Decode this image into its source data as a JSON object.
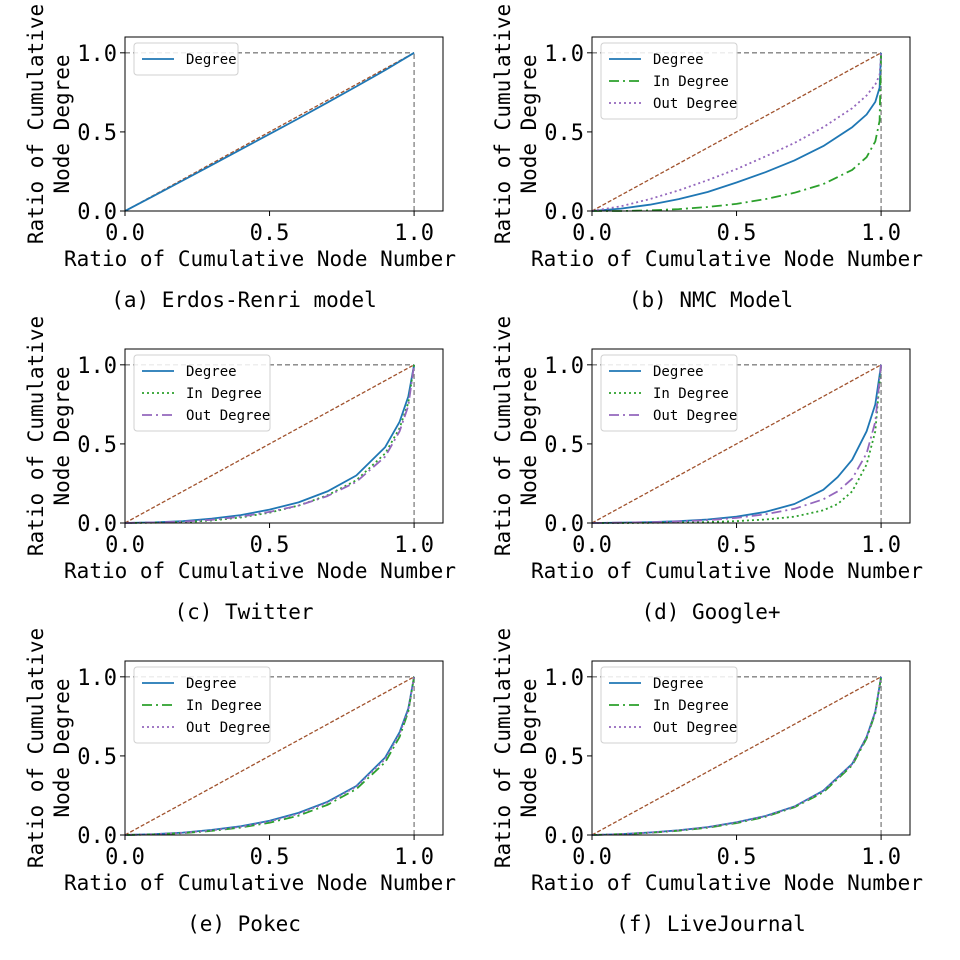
{
  "colors": {
    "degree": "#1f77b4",
    "in_degree": "#2ca02c",
    "out_degree": "#9467bd",
    "reference": "#a0522d",
    "frame": "#808080"
  },
  "chart_data": [
    {
      "type": "line",
      "caption": "(a) Erdos-Renri model",
      "xlabel": "Ratio of Cumulative Node Number",
      "ylabel": [
        "Ratio of Cumulative",
        "Node Degree"
      ],
      "xlim": [
        0,
        1.1
      ],
      "ylim": [
        0,
        1.1
      ],
      "xticks": [
        "0.0",
        "0.5",
        "1.0"
      ],
      "yticks": [
        "0.0",
        "0.5",
        "1.0"
      ],
      "legend": "upper-left",
      "series": [
        {
          "name": "Degree",
          "color": "#1f77b4",
          "dash": "solid",
          "x": [
            0,
            0.1,
            0.2,
            0.3,
            0.4,
            0.5,
            0.6,
            0.7,
            0.8,
            0.9,
            1.0
          ],
          "y": [
            0,
            0.096,
            0.193,
            0.29,
            0.388,
            0.486,
            0.585,
            0.685,
            0.787,
            0.891,
            1.0
          ]
        }
      ]
    },
    {
      "type": "line",
      "caption": "(b) NMC Model",
      "xlabel": "Ratio of Cumulative Node Number",
      "ylabel": [
        "Ratio of Cumulative",
        "Node Degree"
      ],
      "xlim": [
        0,
        1.1
      ],
      "ylim": [
        0,
        1.1
      ],
      "xticks": [
        "0.0",
        "0.5",
        "1.0"
      ],
      "yticks": [
        "0.0",
        "0.5",
        "1.0"
      ],
      "legend": "upper-left",
      "series": [
        {
          "name": "Degree",
          "color": "#1f77b4",
          "dash": "solid",
          "x": [
            0,
            0.1,
            0.2,
            0.3,
            0.4,
            0.5,
            0.6,
            0.7,
            0.8,
            0.9,
            0.95,
            0.98,
            0.995,
            1.0
          ],
          "y": [
            0,
            0.015,
            0.04,
            0.075,
            0.12,
            0.18,
            0.245,
            0.32,
            0.41,
            0.53,
            0.61,
            0.69,
            0.78,
            1.0
          ]
        },
        {
          "name": "In Degree",
          "color": "#2ca02c",
          "dash": "dashdot",
          "x": [
            0,
            0.1,
            0.2,
            0.3,
            0.4,
            0.5,
            0.6,
            0.7,
            0.8,
            0.9,
            0.95,
            0.98,
            0.995,
            1.0
          ],
          "y": [
            0,
            0.0,
            0.004,
            0.012,
            0.025,
            0.045,
            0.075,
            0.115,
            0.17,
            0.26,
            0.34,
            0.44,
            0.57,
            1.0
          ]
        },
        {
          "name": "Out Degree",
          "color": "#9467bd",
          "dash": "dotted",
          "x": [
            0,
            0.1,
            0.2,
            0.3,
            0.4,
            0.5,
            0.6,
            0.7,
            0.8,
            0.9,
            0.95,
            0.98,
            0.995,
            1.0
          ],
          "y": [
            0,
            0.03,
            0.075,
            0.13,
            0.195,
            0.265,
            0.345,
            0.43,
            0.53,
            0.65,
            0.73,
            0.8,
            0.86,
            1.0
          ]
        }
      ]
    },
    {
      "type": "line",
      "caption": "(c) Twitter",
      "xlabel": "Ratio of Cumulative Node Number",
      "ylabel": [
        "Ratio of Cumulative",
        "Node Degree"
      ],
      "xlim": [
        0,
        1.1
      ],
      "ylim": [
        0,
        1.1
      ],
      "xticks": [
        "0.0",
        "0.5",
        "1.0"
      ],
      "yticks": [
        "0.0",
        "0.5",
        "1.0"
      ],
      "legend": "upper-left",
      "series": [
        {
          "name": "Degree",
          "color": "#1f77b4",
          "dash": "solid",
          "x": [
            0,
            0.1,
            0.2,
            0.3,
            0.4,
            0.5,
            0.6,
            0.7,
            0.8,
            0.9,
            0.95,
            0.98,
            1.0
          ],
          "y": [
            0,
            0.004,
            0.012,
            0.028,
            0.05,
            0.085,
            0.13,
            0.2,
            0.3,
            0.48,
            0.64,
            0.8,
            1.0
          ]
        },
        {
          "name": "In Degree",
          "color": "#2ca02c",
          "dash": "dotted",
          "x": [
            0,
            0.1,
            0.2,
            0.3,
            0.4,
            0.5,
            0.6,
            0.7,
            0.8,
            0.9,
            0.95,
            0.98,
            1.0
          ],
          "y": [
            0,
            0.002,
            0.006,
            0.016,
            0.035,
            0.065,
            0.11,
            0.175,
            0.27,
            0.44,
            0.6,
            0.76,
            1.0
          ]
        },
        {
          "name": "Out Degree",
          "color": "#9467bd",
          "dash": "dashdot",
          "x": [
            0,
            0.1,
            0.2,
            0.3,
            0.4,
            0.5,
            0.6,
            0.7,
            0.8,
            0.9,
            0.95,
            0.98,
            1.0
          ],
          "y": [
            0,
            0.003,
            0.009,
            0.02,
            0.04,
            0.07,
            0.11,
            0.17,
            0.26,
            0.42,
            0.58,
            0.74,
            1.0
          ]
        }
      ]
    },
    {
      "type": "line",
      "caption": "(d) Google+",
      "xlabel": "Ratio of Cumulative Node Number",
      "ylabel": [
        "Ratio of Cumulative",
        "Node Degree"
      ],
      "xlim": [
        0,
        1.1
      ],
      "ylim": [
        0,
        1.1
      ],
      "xticks": [
        "0.0",
        "0.5",
        "1.0"
      ],
      "yticks": [
        "0.0",
        "0.5",
        "1.0"
      ],
      "legend": "upper-left",
      "series": [
        {
          "name": "Degree",
          "color": "#1f77b4",
          "dash": "solid",
          "x": [
            0,
            0.1,
            0.2,
            0.3,
            0.4,
            0.5,
            0.6,
            0.7,
            0.8,
            0.85,
            0.9,
            0.95,
            0.98,
            1.0
          ],
          "y": [
            0,
            0.002,
            0.006,
            0.012,
            0.022,
            0.04,
            0.07,
            0.12,
            0.21,
            0.29,
            0.4,
            0.58,
            0.75,
            1.0
          ]
        },
        {
          "name": "In Degree",
          "color": "#2ca02c",
          "dash": "dotted",
          "x": [
            0,
            0.1,
            0.2,
            0.3,
            0.4,
            0.5,
            0.6,
            0.7,
            0.8,
            0.85,
            0.9,
            0.95,
            0.98,
            1.0
          ],
          "y": [
            0,
            0.0,
            0.001,
            0.003,
            0.006,
            0.012,
            0.022,
            0.04,
            0.08,
            0.12,
            0.2,
            0.37,
            0.58,
            1.0
          ]
        },
        {
          "name": "Out Degree",
          "color": "#9467bd",
          "dash": "dashdot",
          "x": [
            0,
            0.1,
            0.2,
            0.3,
            0.4,
            0.5,
            0.6,
            0.7,
            0.8,
            0.85,
            0.9,
            0.95,
            0.98,
            1.0
          ],
          "y": [
            0,
            0.002,
            0.005,
            0.01,
            0.018,
            0.032,
            0.055,
            0.09,
            0.15,
            0.2,
            0.28,
            0.44,
            0.64,
            1.0
          ]
        }
      ]
    },
    {
      "type": "line",
      "caption": "(e) Pokec",
      "xlabel": "Ratio of Cumulative Node Number",
      "ylabel": [
        "Ratio of Cumulative",
        "Node Degree"
      ],
      "xlim": [
        0,
        1.1
      ],
      "ylim": [
        0,
        1.1
      ],
      "xticks": [
        "0.0",
        "0.5",
        "1.0"
      ],
      "yticks": [
        "0.0",
        "0.5",
        "1.0"
      ],
      "legend": "upper-left",
      "series": [
        {
          "name": "Degree",
          "color": "#1f77b4",
          "dash": "solid",
          "x": [
            0,
            0.1,
            0.2,
            0.3,
            0.4,
            0.5,
            0.6,
            0.7,
            0.8,
            0.9,
            0.95,
            0.98,
            1.0
          ],
          "y": [
            0,
            0.005,
            0.015,
            0.032,
            0.055,
            0.09,
            0.14,
            0.21,
            0.31,
            0.49,
            0.65,
            0.8,
            1.0
          ]
        },
        {
          "name": "In Degree",
          "color": "#2ca02c",
          "dash": "dashdot",
          "x": [
            0,
            0.1,
            0.2,
            0.3,
            0.4,
            0.5,
            0.6,
            0.7,
            0.8,
            0.9,
            0.95,
            0.98,
            1.0
          ],
          "y": [
            0,
            0.004,
            0.012,
            0.026,
            0.047,
            0.078,
            0.122,
            0.19,
            0.29,
            0.46,
            0.62,
            0.78,
            1.0
          ]
        },
        {
          "name": "Out Degree",
          "color": "#9467bd",
          "dash": "dotted",
          "x": [
            0,
            0.1,
            0.2,
            0.3,
            0.4,
            0.5,
            0.6,
            0.7,
            0.8,
            0.9,
            0.95,
            0.98,
            1.0
          ],
          "y": [
            0,
            0.005,
            0.014,
            0.03,
            0.052,
            0.086,
            0.134,
            0.205,
            0.305,
            0.48,
            0.64,
            0.79,
            1.0
          ]
        }
      ]
    },
    {
      "type": "line",
      "caption": "(f) LiveJournal",
      "xlabel": "Ratio of Cumulative Node Number",
      "ylabel": [
        "Ratio of Cumulative",
        "Node Degree"
      ],
      "xlim": [
        0,
        1.1
      ],
      "ylim": [
        0,
        1.1
      ],
      "xticks": [
        "0.0",
        "0.5",
        "1.0"
      ],
      "yticks": [
        "0.0",
        "0.5",
        "1.0"
      ],
      "legend": "upper-left",
      "series": [
        {
          "name": "Degree",
          "color": "#1f77b4",
          "dash": "solid",
          "x": [
            0,
            0.1,
            0.2,
            0.3,
            0.4,
            0.5,
            0.6,
            0.7,
            0.8,
            0.9,
            0.95,
            0.98,
            1.0
          ],
          "y": [
            0,
            0.006,
            0.016,
            0.03,
            0.05,
            0.08,
            0.12,
            0.18,
            0.28,
            0.45,
            0.62,
            0.78,
            1.0
          ]
        },
        {
          "name": "In Degree",
          "color": "#2ca02c",
          "dash": "dashdot",
          "x": [
            0,
            0.1,
            0.2,
            0.3,
            0.4,
            0.5,
            0.6,
            0.7,
            0.8,
            0.9,
            0.95,
            0.98,
            1.0
          ],
          "y": [
            0,
            0.005,
            0.014,
            0.027,
            0.046,
            0.075,
            0.115,
            0.175,
            0.27,
            0.44,
            0.61,
            0.77,
            1.0
          ]
        },
        {
          "name": "Out Degree",
          "color": "#9467bd",
          "dash": "dotted",
          "x": [
            0,
            0.1,
            0.2,
            0.3,
            0.4,
            0.5,
            0.6,
            0.7,
            0.8,
            0.9,
            0.95,
            0.98,
            1.0
          ],
          "y": [
            0,
            0.006,
            0.015,
            0.029,
            0.049,
            0.079,
            0.119,
            0.179,
            0.278,
            0.448,
            0.618,
            0.778,
            1.0
          ]
        }
      ]
    }
  ]
}
